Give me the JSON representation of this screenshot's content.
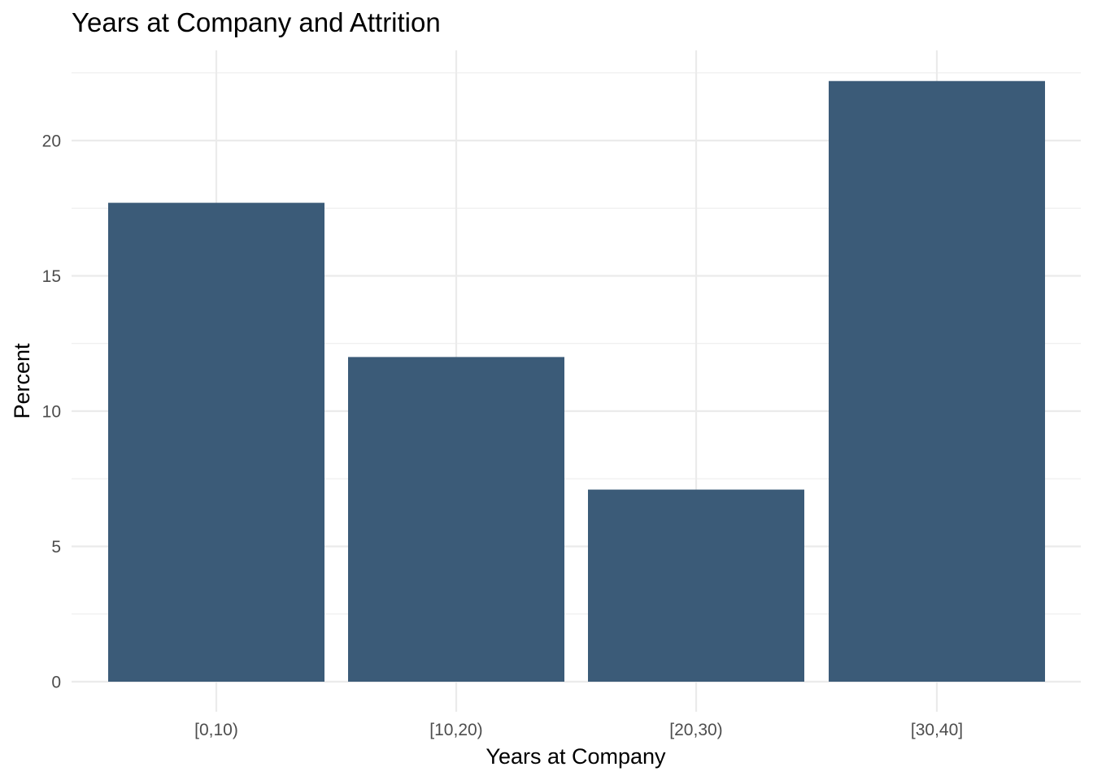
{
  "chart_data": {
    "type": "bar",
    "title": "Years at Company and Attrition",
    "xlabel": "Years at Company",
    "ylabel": "Percent",
    "categories": [
      "[0,10)",
      "[10,20)",
      "[20,30)",
      "[30,40]"
    ],
    "values": [
      17.7,
      12.0,
      7.1,
      22.2
    ],
    "ylim": [
      0,
      22.9
    ],
    "yticks": [
      0,
      5,
      10,
      15,
      20
    ],
    "grid": true,
    "legend": "none",
    "bar_color": "#3B5B78"
  }
}
